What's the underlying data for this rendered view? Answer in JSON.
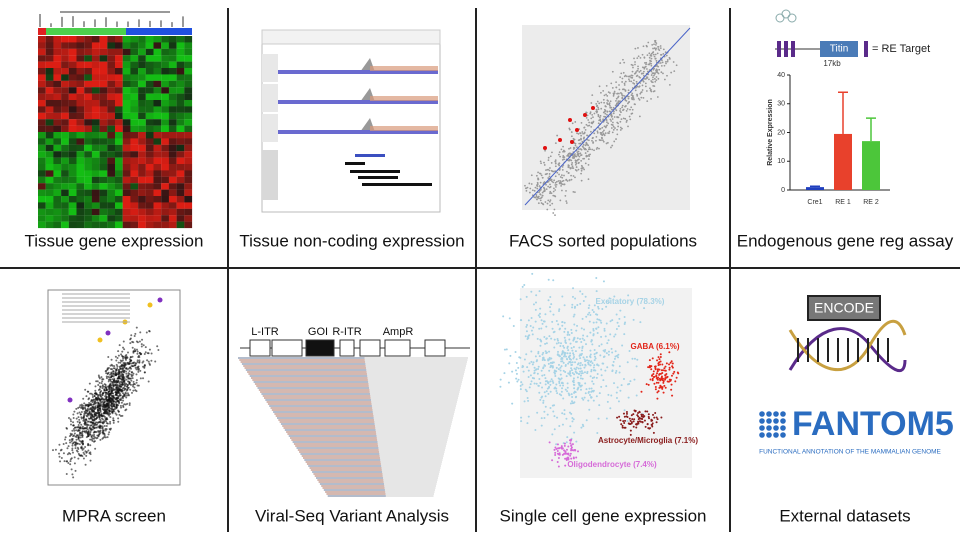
{
  "panels": [
    {
      "caption": "Tissue gene expression"
    },
    {
      "caption": "Tissue non-coding expression"
    },
    {
      "caption": "FACS sorted populations"
    },
    {
      "caption": "Endogenous gene reg assay"
    },
    {
      "caption": "MPRA screen"
    },
    {
      "caption": "Viral-Seq Variant Analysis"
    },
    {
      "caption": "Single cell gene expression"
    },
    {
      "caption": "External datasets"
    }
  ],
  "gene_diagram": {
    "gene": "Titin",
    "length": "17kb",
    "legend": "= RE Target"
  },
  "bar_chart": {
    "type": "bar",
    "y_label": "Relative Expression",
    "categories": [
      "Cre1",
      "RE 1",
      "RE 2"
    ],
    "values": [
      1,
      19.5,
      17
    ],
    "errors": [
      0.3,
      14.5,
      8
    ],
    "colors": [
      "#1f3fbf",
      "#e8412c",
      "#4cc63a"
    ],
    "ylim": [
      0,
      40
    ],
    "yticks": [
      0,
      10,
      20,
      30,
      40
    ]
  },
  "vector_map": {
    "labels": [
      "L-ITR",
      "GOI",
      "R-ITR",
      "AmpR"
    ]
  },
  "clusters": [
    {
      "label": "Excitatory (78.3%)",
      "color": "#a6d3e6"
    },
    {
      "label": "GABA (6.1%)",
      "color": "#e2261a"
    },
    {
      "label": "Astrocyte/Microglia (7.1%)",
      "color": "#8a1c1c"
    },
    {
      "label": "Oligodendrocyte (7.4%)",
      "color": "#d66bd8"
    }
  ],
  "logos": {
    "encode": "ENCODE",
    "fantom": "FANTOM5",
    "fantom_subtitle": "FUNCTIONAL ANNOTATION OF THE MAMMALIAN GENOME"
  }
}
